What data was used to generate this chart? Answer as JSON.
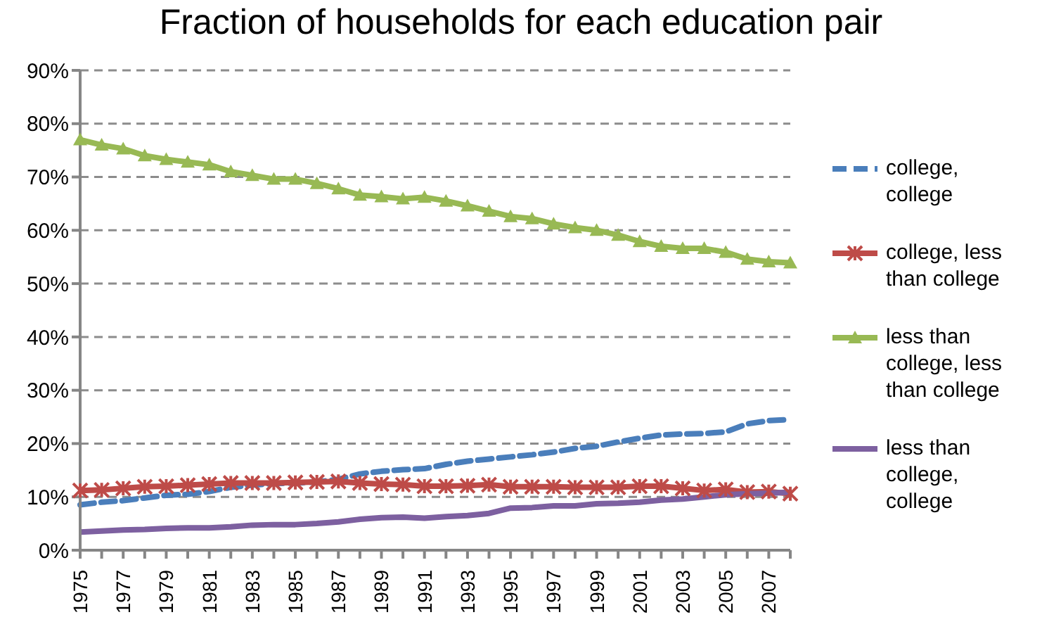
{
  "chart_data": {
    "type": "line",
    "title": "Fraction of households for each education pair",
    "categories": [
      "1975",
      null,
      "1977",
      null,
      "1979",
      null,
      "1981",
      null,
      "1983",
      null,
      "1985",
      null,
      "1987",
      null,
      "1989",
      null,
      "1991",
      null,
      "1993",
      null,
      "1995",
      null,
      "1997",
      null,
      "1999",
      null,
      "2001",
      null,
      "2003",
      null,
      "2005",
      null,
      "2007",
      null
    ],
    "series": [
      {
        "name": "college, college",
        "color": "#4a7ebb",
        "line_style": "dashed",
        "marker": "none",
        "values": [
          8.5,
          9,
          9.3,
          9.8,
          10.3,
          10.5,
          11,
          11.8,
          12.2,
          12.5,
          12.6,
          12.8,
          13.3,
          14.3,
          14.8,
          15.1,
          15.3,
          16.1,
          16.7,
          17.1,
          17.5,
          17.9,
          18.4,
          19.1,
          19.5,
          20.3,
          21,
          21.6,
          21.8,
          21.9,
          22.2,
          23.7,
          24.3,
          24.5
        ]
      },
      {
        "name": "college, less than college",
        "color": "#be4b48",
        "line_style": "solid",
        "marker": "cross",
        "values": [
          11.2,
          11.3,
          11.6,
          11.9,
          12.0,
          12.2,
          12.4,
          12.6,
          12.6,
          12.6,
          12.7,
          12.8,
          12.9,
          12.6,
          12.4,
          12.3,
          12.0,
          12.0,
          12.1,
          12.3,
          11.9,
          11.9,
          11.9,
          11.8,
          11.8,
          11.8,
          12.0,
          12.0,
          11.6,
          11.2,
          11.4,
          10.9,
          11.0,
          10.6
        ]
      },
      {
        "name": "less than college, less than college",
        "color": "#98b954",
        "line_style": "solid",
        "marker": "triangle",
        "values": [
          77,
          76,
          75.3,
          74,
          73.3,
          72.8,
          72.3,
          71,
          70.3,
          69.6,
          69.6,
          68.8,
          67.8,
          66.6,
          66.3,
          65.9,
          66.2,
          65.5,
          64.6,
          63.6,
          62.6,
          62.2,
          61.2,
          60.5,
          60,
          59.1,
          57.9,
          57,
          56.6,
          56.6,
          55.9,
          54.6,
          54.1,
          53.9
        ]
      },
      {
        "name": "less than college, college",
        "color": "#7d60a0",
        "line_style": "solid",
        "marker": "none",
        "values": [
          3.4,
          3.6,
          3.8,
          3.9,
          4.1,
          4.2,
          4.2,
          4.4,
          4.7,
          4.8,
          4.8,
          5.0,
          5.3,
          5.8,
          6.1,
          6.2,
          6.0,
          6.3,
          6.5,
          6.9,
          7.9,
          8.0,
          8.3,
          8.3,
          8.7,
          8.8,
          9.0,
          9.4,
          9.6,
          10.0,
          10.4,
          10.6,
          10.7,
          10.9
        ]
      }
    ],
    "ylim": [
      0,
      90
    ],
    "yticks": [
      {
        "value": 0,
        "label": "0%"
      },
      {
        "value": 10,
        "label": "10%"
      },
      {
        "value": 20,
        "label": "20%"
      },
      {
        "value": 30,
        "label": "30%"
      },
      {
        "value": 40,
        "label": "40%"
      },
      {
        "value": 50,
        "label": "50%"
      },
      {
        "value": 60,
        "label": "60%"
      },
      {
        "value": 70,
        "label": "70%"
      },
      {
        "value": 80,
        "label": "80%"
      },
      {
        "value": 90,
        "label": "90%"
      }
    ],
    "grid": "y",
    "legend": "right"
  }
}
